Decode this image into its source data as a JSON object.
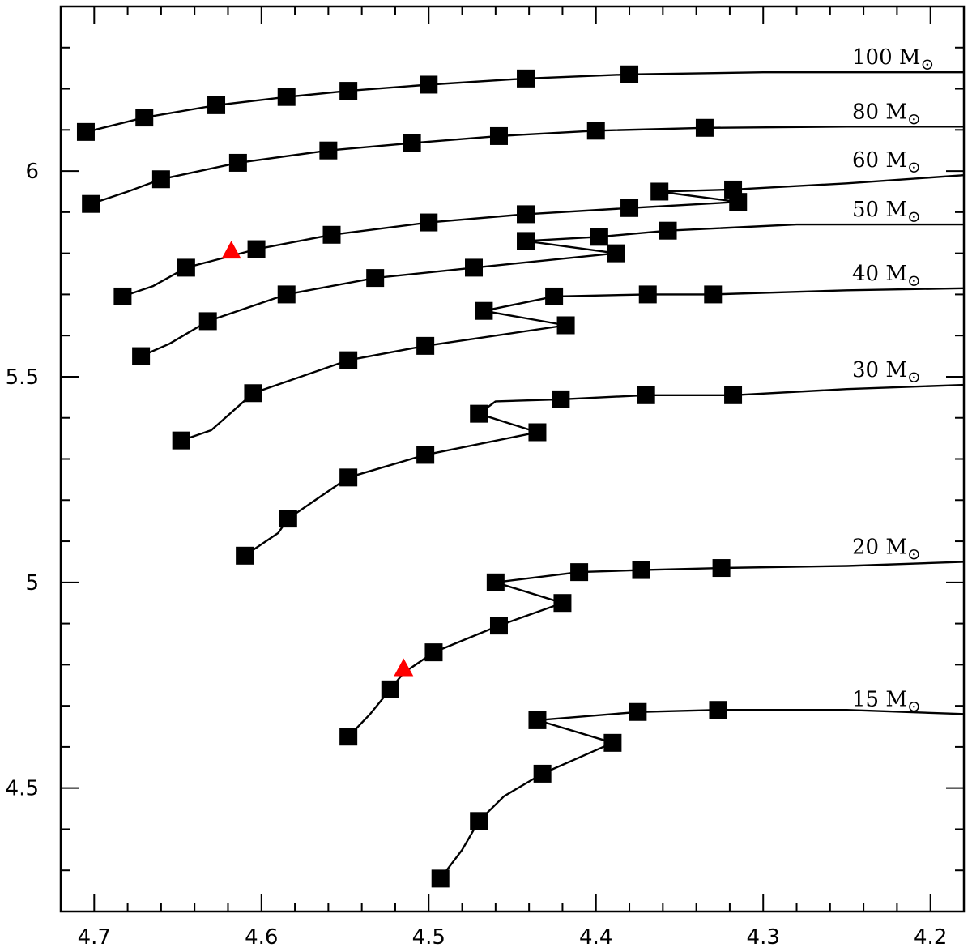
{
  "chart_data": {
    "type": "line",
    "title": "",
    "xlabel": "",
    "ylabel": "",
    "xlim": [
      4.72,
      4.18
    ],
    "ylim": [
      4.2,
      6.4
    ],
    "x_reversed": true,
    "grid": false,
    "x_ticks": [
      4.7,
      4.6,
      4.5,
      4.4,
      4.3,
      4.2
    ],
    "x_tick_labels": [
      "4.7",
      "4.6",
      "4.5",
      "4.4",
      "4.3",
      "4.2"
    ],
    "y_ticks": [
      4.5,
      5.0,
      5.5,
      6.0
    ],
    "y_tick_labels": [
      "4.5",
      "5",
      "5.5",
      "6"
    ],
    "marker_colors": {
      "square": "#000000",
      "triangle": "#ff0000"
    },
    "series": [
      {
        "name": "100 M",
        "name_symbol": "⊙",
        "points": [
          [
            4.705,
            6.095
          ],
          [
            4.67,
            6.13
          ],
          [
            4.627,
            6.16
          ],
          [
            4.585,
            6.18
          ],
          [
            4.548,
            6.195
          ],
          [
            4.5,
            6.21
          ],
          [
            4.442,
            6.225
          ],
          [
            4.38,
            6.235
          ],
          [
            4.3,
            6.24
          ],
          [
            4.18,
            6.24
          ]
        ],
        "markers": [
          [
            4.705,
            6.095
          ],
          [
            4.67,
            6.13
          ],
          [
            4.627,
            6.16
          ],
          [
            4.585,
            6.18
          ],
          [
            4.548,
            6.195
          ],
          [
            4.5,
            6.21
          ],
          [
            4.442,
            6.225
          ],
          [
            4.38,
            6.235
          ]
        ]
      },
      {
        "name": "80 M",
        "name_symbol": "⊙",
        "points": [
          [
            4.702,
            5.92
          ],
          [
            4.68,
            5.95
          ],
          [
            4.66,
            5.98
          ],
          [
            4.614,
            6.02
          ],
          [
            4.56,
            6.05
          ],
          [
            4.51,
            6.068
          ],
          [
            4.458,
            6.085
          ],
          [
            4.4,
            6.098
          ],
          [
            4.335,
            6.105
          ],
          [
            4.25,
            6.108
          ],
          [
            4.18,
            6.108
          ]
        ],
        "markers": [
          [
            4.702,
            5.92
          ],
          [
            4.66,
            5.98
          ],
          [
            4.614,
            6.02
          ],
          [
            4.56,
            6.05
          ],
          [
            4.51,
            6.068
          ],
          [
            4.458,
            6.085
          ],
          [
            4.4,
            6.098
          ],
          [
            4.335,
            6.105
          ]
        ]
      },
      {
        "name": "60 M",
        "name_symbol": "⊙",
        "points": [
          [
            4.683,
            5.695
          ],
          [
            4.665,
            5.72
          ],
          [
            4.645,
            5.765
          ],
          [
            4.603,
            5.81
          ],
          [
            4.558,
            5.845
          ],
          [
            4.5,
            5.875
          ],
          [
            4.442,
            5.895
          ],
          [
            4.38,
            5.91
          ],
          [
            4.315,
            5.925
          ],
          [
            4.362,
            5.95
          ],
          [
            4.318,
            5.955
          ],
          [
            4.25,
            5.97
          ],
          [
            4.18,
            5.99
          ]
        ],
        "markers": [
          [
            4.683,
            5.695
          ],
          [
            4.645,
            5.765
          ],
          [
            4.603,
            5.81
          ],
          [
            4.558,
            5.845
          ],
          [
            4.5,
            5.875
          ],
          [
            4.442,
            5.895
          ],
          [
            4.38,
            5.91
          ],
          [
            4.315,
            5.925
          ],
          [
            4.362,
            5.95
          ],
          [
            4.318,
            5.955
          ]
        ],
        "triangles": [
          [
            4.618,
            5.805
          ]
        ]
      },
      {
        "name": "50 M",
        "name_symbol": "⊙",
        "points": [
          [
            4.672,
            5.55
          ],
          [
            4.655,
            5.58
          ],
          [
            4.632,
            5.635
          ],
          [
            4.585,
            5.7
          ],
          [
            4.532,
            5.74
          ],
          [
            4.473,
            5.765
          ],
          [
            4.388,
            5.8
          ],
          [
            4.442,
            5.83
          ],
          [
            4.398,
            5.84
          ],
          [
            4.357,
            5.855
          ],
          [
            4.28,
            5.87
          ],
          [
            4.18,
            5.87
          ]
        ],
        "markers": [
          [
            4.672,
            5.55
          ],
          [
            4.632,
            5.635
          ],
          [
            4.585,
            5.7
          ],
          [
            4.532,
            5.74
          ],
          [
            4.473,
            5.765
          ],
          [
            4.388,
            5.8
          ],
          [
            4.442,
            5.83
          ],
          [
            4.398,
            5.84
          ],
          [
            4.357,
            5.855
          ]
        ]
      },
      {
        "name": "40 M",
        "name_symbol": "⊙",
        "points": [
          [
            4.648,
            5.345
          ],
          [
            4.63,
            5.37
          ],
          [
            4.605,
            5.46
          ],
          [
            4.548,
            5.54
          ],
          [
            4.502,
            5.575
          ],
          [
            4.418,
            5.625
          ],
          [
            4.467,
            5.66
          ],
          [
            4.425,
            5.695
          ],
          [
            4.369,
            5.7
          ],
          [
            4.33,
            5.7
          ],
          [
            4.25,
            5.71
          ],
          [
            4.18,
            5.715
          ]
        ],
        "markers": [
          [
            4.648,
            5.345
          ],
          [
            4.605,
            5.46
          ],
          [
            4.548,
            5.54
          ],
          [
            4.502,
            5.575
          ],
          [
            4.418,
            5.625
          ],
          [
            4.467,
            5.66
          ],
          [
            4.425,
            5.695
          ],
          [
            4.369,
            5.7
          ],
          [
            4.33,
            5.7
          ]
        ]
      },
      {
        "name": "30 M",
        "name_symbol": "⊙",
        "points": [
          [
            4.61,
            5.065
          ],
          [
            4.59,
            5.12
          ],
          [
            4.584,
            5.155
          ],
          [
            4.548,
            5.255
          ],
          [
            4.502,
            5.31
          ],
          [
            4.435,
            5.365
          ],
          [
            4.47,
            5.41
          ],
          [
            4.46,
            5.44
          ],
          [
            4.421,
            5.445
          ],
          [
            4.37,
            5.455
          ],
          [
            4.318,
            5.455
          ],
          [
            4.25,
            5.47
          ],
          [
            4.18,
            5.48
          ]
        ],
        "markers": [
          [
            4.61,
            5.065
          ],
          [
            4.584,
            5.155
          ],
          [
            4.548,
            5.255
          ],
          [
            4.502,
            5.31
          ],
          [
            4.435,
            5.365
          ],
          [
            4.47,
            5.41
          ],
          [
            4.421,
            5.445
          ],
          [
            4.37,
            5.455
          ],
          [
            4.318,
            5.455
          ]
        ]
      },
      {
        "name": "20 M",
        "name_symbol": "⊙",
        "points": [
          [
            4.548,
            4.625
          ],
          [
            4.535,
            4.68
          ],
          [
            4.523,
            4.74
          ],
          [
            4.515,
            4.78
          ],
          [
            4.497,
            4.83
          ],
          [
            4.458,
            4.895
          ],
          [
            4.42,
            4.95
          ],
          [
            4.46,
            5.0
          ],
          [
            4.41,
            5.025
          ],
          [
            4.373,
            5.03
          ],
          [
            4.325,
            5.035
          ],
          [
            4.25,
            5.04
          ],
          [
            4.18,
            5.05
          ]
        ],
        "markers": [
          [
            4.548,
            4.625
          ],
          [
            4.523,
            4.74
          ],
          [
            4.497,
            4.83
          ],
          [
            4.458,
            4.895
          ],
          [
            4.42,
            4.95
          ],
          [
            4.46,
            5.0
          ],
          [
            4.41,
            5.025
          ],
          [
            4.373,
            5.03
          ],
          [
            4.325,
            5.035
          ]
        ],
        "triangles": [
          [
            4.515,
            4.79
          ]
        ]
      },
      {
        "name": "15 M",
        "name_symbol": "⊙",
        "points": [
          [
            4.493,
            4.28
          ],
          [
            4.48,
            4.35
          ],
          [
            4.47,
            4.42
          ],
          [
            4.455,
            4.48
          ],
          [
            4.432,
            4.535
          ],
          [
            4.39,
            4.61
          ],
          [
            4.435,
            4.665
          ],
          [
            4.375,
            4.685
          ],
          [
            4.327,
            4.69
          ],
          [
            4.25,
            4.69
          ],
          [
            4.18,
            4.68
          ]
        ],
        "markers": [
          [
            4.493,
            4.28
          ],
          [
            4.47,
            4.42
          ],
          [
            4.432,
            4.535
          ],
          [
            4.39,
            4.61
          ],
          [
            4.435,
            4.665
          ],
          [
            4.375,
            4.685
          ],
          [
            4.327,
            4.69
          ]
        ]
      }
    ]
  }
}
